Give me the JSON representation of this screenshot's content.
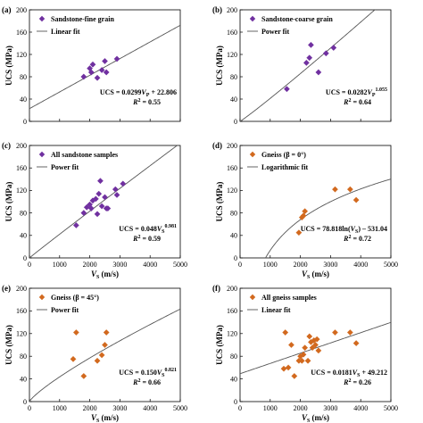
{
  "figure": {
    "ylabel": "UCS (MPa)",
    "xlabel": "V",
    "xlabel_sub": "S",
    "xlabel_unit": " (m/s)"
  },
  "chart_data": [
    {
      "id": "a",
      "panel_label": "(a)",
      "type": "scatter",
      "xlim": [
        0,
        5000
      ],
      "ylim": [
        0,
        200
      ],
      "xticks": [
        0,
        1000,
        2000,
        3000,
        4000,
        5000
      ],
      "yticks": [
        0,
        40,
        80,
        120,
        160,
        200
      ],
      "show_xticklabels": false,
      "marker": "diamond",
      "marker_color": "#7030a0",
      "series": [
        {
          "name": "Sandstone-fine grain",
          "points": [
            [
              1800,
              80
            ],
            [
              2000,
              95
            ],
            [
              2050,
              88
            ],
            [
              2100,
              102
            ],
            [
              2250,
              78
            ],
            [
              2400,
              92
            ],
            [
              2550,
              88
            ],
            [
              2500,
              108
            ],
            [
              2900,
              112
            ]
          ]
        }
      ],
      "fit": {
        "name": "Linear fit",
        "kind": "linear",
        "a": 0.0299,
        "b": 22.806
      },
      "equation": [
        "UCS = 0.0299",
        "V",
        "P",
        "",
        " + 22.806"
      ],
      "r2": [
        "R",
        "2",
        " = 0.55"
      ]
    },
    {
      "id": "b",
      "panel_label": "(b)",
      "type": "scatter",
      "xlim": [
        0,
        5000
      ],
      "ylim": [
        0,
        200
      ],
      "xticks": [
        0,
        1000,
        2000,
        3000,
        4000,
        5000
      ],
      "yticks": [
        0,
        40,
        80,
        120,
        160,
        200
      ],
      "show_xticklabels": false,
      "marker": "diamond",
      "marker_color": "#7030a0",
      "series": [
        {
          "name": "Sandstone-coarse grain",
          "points": [
            [
              1550,
              58
            ],
            [
              2200,
              105
            ],
            [
              2300,
              114
            ],
            [
              2350,
              137
            ],
            [
              2600,
              88
            ],
            [
              2850,
              122
            ],
            [
              3100,
              132
            ]
          ]
        }
      ],
      "fit": {
        "name": "Power fit",
        "kind": "power",
        "a": 0.0282,
        "b": 1.055
      },
      "equation": [
        "UCS = 0.0282",
        "V",
        "P",
        "1.055",
        ""
      ],
      "r2": [
        "R",
        "2",
        " = 0.64"
      ]
    },
    {
      "id": "c",
      "panel_label": "(c)",
      "type": "scatter",
      "xlim": [
        0,
        5000
      ],
      "ylim": [
        0,
        200
      ],
      "xticks": [
        0,
        1000,
        2000,
        3000,
        4000,
        5000
      ],
      "yticks": [
        0,
        40,
        80,
        120,
        160,
        200
      ],
      "show_xticklabels": true,
      "marker": "diamond",
      "marker_color": "#7030a0",
      "series": [
        {
          "name": "All sandstone samples",
          "points": [
            [
              1550,
              58
            ],
            [
              1800,
              80
            ],
            [
              1900,
              90
            ],
            [
              2000,
              95
            ],
            [
              2050,
              88
            ],
            [
              2100,
              102
            ],
            [
              2200,
              105
            ],
            [
              2250,
              78
            ],
            [
              2300,
              114
            ],
            [
              2350,
              137
            ],
            [
              2400,
              92
            ],
            [
              2500,
              108
            ],
            [
              2550,
              88
            ],
            [
              2600,
              88
            ],
            [
              2850,
              122
            ],
            [
              2900,
              112
            ],
            [
              3100,
              132
            ]
          ]
        }
      ],
      "fit": {
        "name": "Power fit",
        "kind": "power",
        "a": 0.048,
        "b": 0.981
      },
      "equation": [
        "UCS = 0.048",
        "V",
        "S",
        "0.981",
        ""
      ],
      "r2": [
        "R",
        "2",
        " = 0.59"
      ]
    },
    {
      "id": "d",
      "panel_label": "(d)",
      "type": "scatter",
      "xlim": [
        0,
        5000
      ],
      "ylim": [
        0,
        200
      ],
      "xticks": [
        0,
        1000,
        2000,
        3000,
        4000,
        5000
      ],
      "yticks": [
        0,
        40,
        80,
        120,
        160,
        200
      ],
      "show_xticklabels": true,
      "marker": "diamond",
      "marker_color": "#d2691e",
      "series": [
        {
          "name": "Gneiss (β = 0°)",
          "points": [
            [
              1950,
              45
            ],
            [
              2050,
              72
            ],
            [
              2100,
              75
            ],
            [
              2150,
              83
            ],
            [
              3150,
              122
            ],
            [
              3650,
              122
            ],
            [
              3850,
              103
            ]
          ]
        }
      ],
      "fit": {
        "name": "Logarithmic fit",
        "kind": "log",
        "a": 78.818,
        "b": -531.04
      },
      "equation": [
        "UCS = 78.818ln(",
        "V",
        "S",
        "",
        ") – 531.04"
      ],
      "r2": [
        "R",
        "2",
        " = 0.72"
      ]
    },
    {
      "id": "e",
      "panel_label": "(e)",
      "type": "scatter",
      "xlim": [
        0,
        5000
      ],
      "ylim": [
        0,
        200
      ],
      "xticks": [
        0,
        1000,
        2000,
        3000,
        4000,
        5000
      ],
      "yticks": [
        0,
        40,
        80,
        120,
        160,
        200
      ],
      "show_xticklabels": true,
      "marker": "diamond",
      "marker_color": "#d2691e",
      "series": [
        {
          "name": "Gneiss (β = 45°)",
          "points": [
            [
              1450,
              75
            ],
            [
              1550,
              122
            ],
            [
              1800,
              45
            ],
            [
              2250,
              72
            ],
            [
              2400,
              82
            ],
            [
              2500,
              100
            ],
            [
              2550,
              122
            ]
          ]
        }
      ],
      "fit": {
        "name": "Power fit",
        "kind": "power",
        "a": 0.15,
        "b": 0.821
      },
      "equation": [
        "UCS = 0.150",
        "V",
        "S",
        "0.821",
        ""
      ],
      "r2": [
        "R",
        "2",
        " = 0.66"
      ]
    },
    {
      "id": "f",
      "panel_label": "(f)",
      "type": "scatter",
      "xlim": [
        0,
        5000
      ],
      "ylim": [
        0,
        200
      ],
      "xticks": [
        0,
        1000,
        2000,
        3000,
        4000,
        5000
      ],
      "yticks": [
        0,
        40,
        80,
        120,
        160,
        200
      ],
      "show_xticklabels": true,
      "marker": "diamond",
      "marker_color": "#d2691e",
      "series": [
        {
          "name": "All gneiss samples",
          "points": [
            [
              1450,
              58
            ],
            [
              1500,
              122
            ],
            [
              1600,
              60
            ],
            [
              1700,
              100
            ],
            [
              1800,
              45
            ],
            [
              1950,
              72
            ],
            [
              2000,
              80
            ],
            [
              2050,
              72
            ],
            [
              2100,
              83
            ],
            [
              2150,
              95
            ],
            [
              2250,
              72
            ],
            [
              2300,
              115
            ],
            [
              2350,
              105
            ],
            [
              2400,
              95
            ],
            [
              2450,
              108
            ],
            [
              2500,
              100
            ],
            [
              2550,
              110
            ],
            [
              2600,
              90
            ],
            [
              3150,
              122
            ],
            [
              3650,
              122
            ],
            [
              3850,
              103
            ]
          ]
        }
      ],
      "fit": {
        "name": "Linear fit",
        "kind": "linear",
        "a": 0.0181,
        "b": 49.212
      },
      "equation": [
        "UCS = 0.0181",
        "V",
        "S",
        "",
        " + 49.212"
      ],
      "r2": [
        "R",
        "2",
        " = 0.26"
      ]
    }
  ]
}
